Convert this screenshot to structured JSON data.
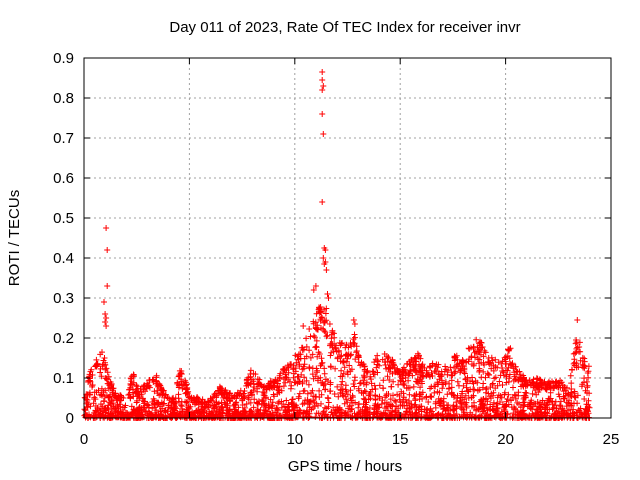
{
  "chart_data": {
    "type": "scatter",
    "title": "Day 011 of 2023, Rate Of TEC Index for receiver invr",
    "xlabel": "GPS time / hours",
    "ylabel": "ROTI / TECUs",
    "xlim": [
      0,
      25
    ],
    "ylim": [
      0,
      0.9
    ],
    "xticks": [
      0,
      5,
      10,
      15,
      20,
      25
    ],
    "yticks": [
      0,
      0.1,
      0.2,
      0.3,
      0.4,
      0.5,
      0.6,
      0.7,
      0.8,
      0.9
    ],
    "grid": true,
    "marker": "+",
    "color": "#ff0000",
    "envelope": [
      [
        0.0,
        0.06
      ],
      [
        0.3,
        0.12
      ],
      [
        0.6,
        0.15
      ],
      [
        0.9,
        0.17
      ],
      [
        1.2,
        0.1
      ],
      [
        1.6,
        0.06
      ],
      [
        2.0,
        0.05
      ],
      [
        2.3,
        0.12
      ],
      [
        2.6,
        0.07
      ],
      [
        3.0,
        0.09
      ],
      [
        3.4,
        0.11
      ],
      [
        3.8,
        0.07
      ],
      [
        4.2,
        0.05
      ],
      [
        4.6,
        0.13
      ],
      [
        5.0,
        0.06
      ],
      [
        5.5,
        0.05
      ],
      [
        6.0,
        0.05
      ],
      [
        6.4,
        0.08
      ],
      [
        7.0,
        0.06
      ],
      [
        7.5,
        0.07
      ],
      [
        8.0,
        0.13
      ],
      [
        8.5,
        0.08
      ],
      [
        9.0,
        0.1
      ],
      [
        9.4,
        0.12
      ],
      [
        9.8,
        0.14
      ],
      [
        10.2,
        0.17
      ],
      [
        10.5,
        0.2
      ],
      [
        10.8,
        0.24
      ],
      [
        11.0,
        0.28
      ],
      [
        11.3,
        0.3
      ],
      [
        11.6,
        0.26
      ],
      [
        12.0,
        0.2
      ],
      [
        12.4,
        0.18
      ],
      [
        12.8,
        0.22
      ],
      [
        13.2,
        0.14
      ],
      [
        13.6,
        0.12
      ],
      [
        14.0,
        0.17
      ],
      [
        14.5,
        0.16
      ],
      [
        15.0,
        0.12
      ],
      [
        15.4,
        0.14
      ],
      [
        15.8,
        0.17
      ],
      [
        16.2,
        0.12
      ],
      [
        16.7,
        0.15
      ],
      [
        17.2,
        0.13
      ],
      [
        17.6,
        0.16
      ],
      [
        18.0,
        0.15
      ],
      [
        18.4,
        0.19
      ],
      [
        18.7,
        0.2
      ],
      [
        19.0,
        0.18
      ],
      [
        19.4,
        0.15
      ],
      [
        19.8,
        0.14
      ],
      [
        20.2,
        0.18
      ],
      [
        20.6,
        0.12
      ],
      [
        21.0,
        0.1
      ],
      [
        21.5,
        0.1
      ],
      [
        22.0,
        0.09
      ],
      [
        22.5,
        0.1
      ],
      [
        23.0,
        0.07
      ],
      [
        23.4,
        0.23
      ],
      [
        23.7,
        0.16
      ],
      [
        24.0,
        0.13
      ]
    ],
    "outliers": [
      {
        "x": 0.95,
        "y": 0.29
      },
      {
        "x": 1.0,
        "y": 0.26
      },
      {
        "x": 1.05,
        "y": 0.23
      },
      {
        "x": 1.05,
        "y": 0.25
      },
      {
        "x": 1.0,
        "y": 0.24
      },
      {
        "x": 1.1,
        "y": 0.33
      },
      {
        "x": 1.1,
        "y": 0.42
      },
      {
        "x": 1.05,
        "y": 0.475
      },
      {
        "x": 10.4,
        "y": 0.23
      },
      {
        "x": 10.9,
        "y": 0.32
      },
      {
        "x": 11.0,
        "y": 0.33
      },
      {
        "x": 11.3,
        "y": 0.54
      },
      {
        "x": 11.35,
        "y": 0.71
      },
      {
        "x": 11.3,
        "y": 0.76
      },
      {
        "x": 11.3,
        "y": 0.82
      },
      {
        "x": 11.35,
        "y": 0.83
      },
      {
        "x": 11.3,
        "y": 0.845
      },
      {
        "x": 11.3,
        "y": 0.865
      },
      {
        "x": 11.4,
        "y": 0.425
      },
      {
        "x": 11.45,
        "y": 0.42
      },
      {
        "x": 11.35,
        "y": 0.4
      },
      {
        "x": 11.45,
        "y": 0.39
      },
      {
        "x": 11.4,
        "y": 0.385
      },
      {
        "x": 11.5,
        "y": 0.37
      },
      {
        "x": 11.55,
        "y": 0.31
      },
      {
        "x": 11.6,
        "y": 0.3
      },
      {
        "x": 12.8,
        "y": 0.245
      },
      {
        "x": 12.85,
        "y": 0.235
      },
      {
        "x": 23.4,
        "y": 0.245
      }
    ]
  }
}
